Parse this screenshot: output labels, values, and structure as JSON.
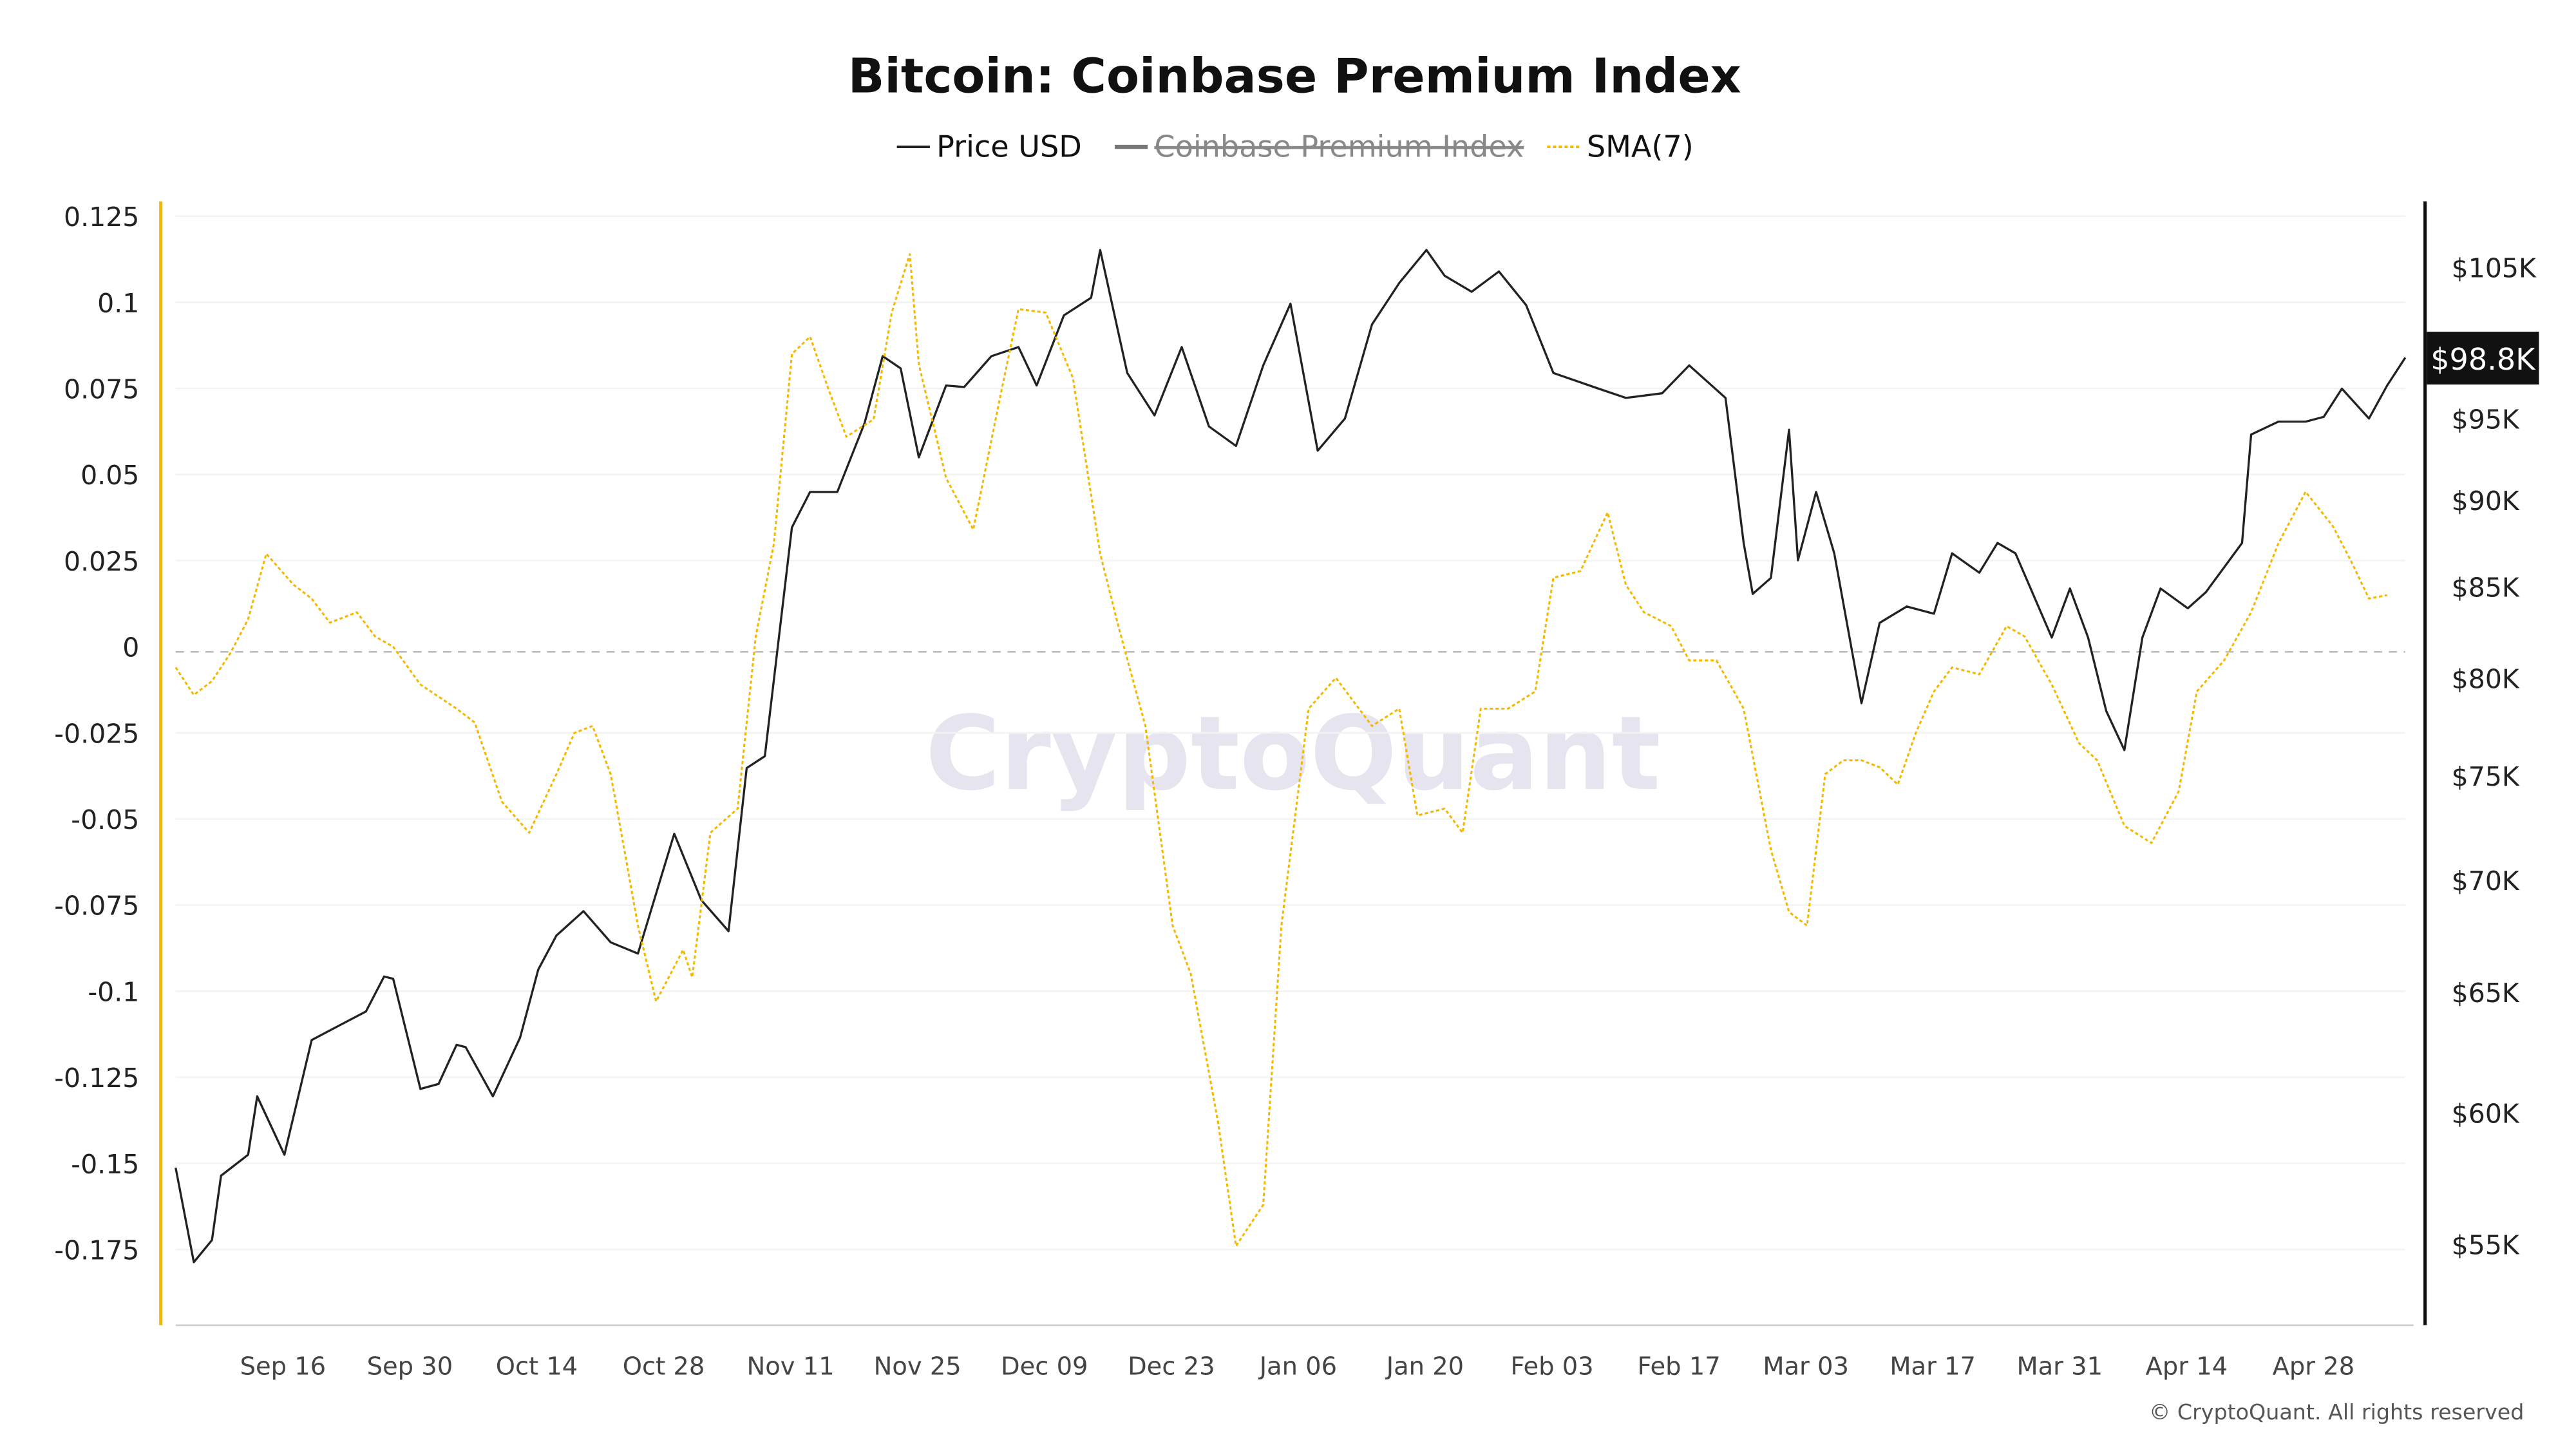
{
  "chart_data": {
    "type": "line",
    "title": "Bitcoin: Coinbase Premium Index",
    "legend": [
      {
        "name": "Price USD",
        "color": "#222222",
        "hidden": false
      },
      {
        "name": "Coinbase Premium Index",
        "color": "#777777",
        "hidden": true
      },
      {
        "name": "SMA(7)",
        "color": "#f5b800",
        "hidden": false
      }
    ],
    "legend_placement": "top",
    "x_ticks": [
      "Sep 16",
      "Sep 30",
      "Oct 14",
      "Oct 28",
      "Nov 11",
      "Nov 25",
      "Dec 09",
      "Dec 23",
      "Jan 06",
      "Jan 20",
      "Feb 03",
      "Feb 17",
      "Mar 03",
      "Mar 17",
      "Mar 31",
      "Apr 14",
      "Apr 28"
    ],
    "x_range": [
      "2024-09-04",
      "2025-05-08"
    ],
    "y_left": {
      "ticks": [
        "0.125",
        "0.1",
        "0.075",
        "0.05",
        "0.025",
        "0",
        "-0.025",
        "-0.05",
        "-0.075",
        "-0.1",
        "-0.125",
        "-0.15",
        "-0.175"
      ],
      "range": [
        -0.19,
        0.13
      ]
    },
    "y_right": {
      "ticks": [
        "$105K",
        "$95K",
        "$90K",
        "$85K",
        "$80K",
        "$75K",
        "$70K",
        "$65K",
        "$60K",
        "$55K"
      ],
      "scale": "log",
      "range": [
        52500,
        110000
      ]
    },
    "current_price_label": "$98.8K",
    "zero_line": "dashed",
    "grid": true,
    "watermark": "CryptoQuant",
    "footer": "© CryptoQuant. All rights reserved",
    "series": [
      {
        "name": "Price USD",
        "axis": "right",
        "color": "#222222",
        "points": [
          [
            "2024-09-04",
            57800
          ],
          [
            "2024-09-06",
            54300
          ],
          [
            "2024-09-08",
            55100
          ],
          [
            "2024-09-09",
            57500
          ],
          [
            "2024-09-12",
            58300
          ],
          [
            "2024-09-13",
            60600
          ],
          [
            "2024-09-16",
            58300
          ],
          [
            "2024-09-19",
            62900
          ],
          [
            "2024-09-22",
            63500
          ],
          [
            "2024-09-25",
            64100
          ],
          [
            "2024-09-27",
            65600
          ],
          [
            "2024-09-28",
            65500
          ],
          [
            "2024-10-01",
            60900
          ],
          [
            "2024-10-03",
            61100
          ],
          [
            "2024-10-05",
            62700
          ],
          [
            "2024-10-06",
            62600
          ],
          [
            "2024-10-09",
            60600
          ],
          [
            "2024-10-12",
            63000
          ],
          [
            "2024-10-14",
            65900
          ],
          [
            "2024-10-16",
            67400
          ],
          [
            "2024-10-19",
            68500
          ],
          [
            "2024-10-22",
            67100
          ],
          [
            "2024-10-25",
            66600
          ],
          [
            "2024-10-29",
            72100
          ],
          [
            "2024-11-01",
            69000
          ],
          [
            "2024-11-04",
            67600
          ],
          [
            "2024-11-06",
            75300
          ],
          [
            "2024-11-08",
            75900
          ],
          [
            "2024-11-11",
            88300
          ],
          [
            "2024-11-13",
            90400
          ],
          [
            "2024-11-16",
            90400
          ],
          [
            "2024-11-19",
            94600
          ],
          [
            "2024-11-21",
            98900
          ],
          [
            "2024-11-23",
            98100
          ],
          [
            "2024-11-25",
            92500
          ],
          [
            "2024-11-28",
            97000
          ],
          [
            "2024-11-30",
            96900
          ],
          [
            "2024-12-03",
            98900
          ],
          [
            "2024-12-06",
            99500
          ],
          [
            "2024-12-08",
            97000
          ],
          [
            "2024-12-11",
            101600
          ],
          [
            "2024-12-14",
            102800
          ],
          [
            "2024-12-15",
            106100
          ],
          [
            "2024-12-18",
            97800
          ],
          [
            "2024-12-21",
            95100
          ],
          [
            "2024-12-24",
            99500
          ],
          [
            "2024-12-27",
            94400
          ],
          [
            "2024-12-30",
            93200
          ],
          [
            "2025-01-02",
            98300
          ],
          [
            "2025-01-05",
            102400
          ],
          [
            "2025-01-08",
            92900
          ],
          [
            "2025-01-11",
            94900
          ],
          [
            "2025-01-14",
            101000
          ],
          [
            "2025-01-17",
            103800
          ],
          [
            "2025-01-20",
            106100
          ],
          [
            "2025-01-22",
            104300
          ],
          [
            "2025-01-25",
            103200
          ],
          [
            "2025-01-28",
            104600
          ],
          [
            "2025-01-31",
            102300
          ],
          [
            "2025-02-03",
            97800
          ],
          [
            "2025-02-08",
            96800
          ],
          [
            "2025-02-11",
            96200
          ],
          [
            "2025-02-15",
            96500
          ],
          [
            "2025-02-18",
            98300
          ],
          [
            "2025-02-22",
            96200
          ],
          [
            "2025-02-24",
            87400
          ],
          [
            "2025-02-25",
            84500
          ],
          [
            "2025-02-27",
            85400
          ],
          [
            "2025-03-01",
            94200
          ],
          [
            "2025-03-02",
            86400
          ],
          [
            "2025-03-04",
            90400
          ],
          [
            "2025-03-06",
            86800
          ],
          [
            "2025-03-09",
            78600
          ],
          [
            "2025-03-11",
            82900
          ],
          [
            "2025-03-14",
            83800
          ],
          [
            "2025-03-17",
            83400
          ],
          [
            "2025-03-19",
            86800
          ],
          [
            "2025-03-22",
            85700
          ],
          [
            "2025-03-24",
            87400
          ],
          [
            "2025-03-26",
            86800
          ],
          [
            "2025-03-30",
            82100
          ],
          [
            "2025-04-01",
            84800
          ],
          [
            "2025-04-03",
            82100
          ],
          [
            "2025-04-05",
            78200
          ],
          [
            "2025-04-07",
            76200
          ],
          [
            "2025-04-09",
            82100
          ],
          [
            "2025-04-11",
            84800
          ],
          [
            "2025-04-14",
            83700
          ],
          [
            "2025-04-16",
            84600
          ],
          [
            "2025-04-20",
            87400
          ],
          [
            "2025-04-21",
            93900
          ],
          [
            "2025-04-24",
            94700
          ],
          [
            "2025-04-27",
            94700
          ],
          [
            "2025-04-29",
            95000
          ],
          [
            "2025-05-01",
            96800
          ],
          [
            "2025-05-04",
            94900
          ],
          [
            "2025-05-06",
            97000
          ],
          [
            "2025-05-08",
            98800
          ]
        ]
      },
      {
        "name": "SMA(7)",
        "axis": "left",
        "color": "#f5b800",
        "points": [
          [
            "2024-09-04",
            -0.006
          ],
          [
            "2024-09-06",
            -0.014
          ],
          [
            "2024-09-08",
            -0.01
          ],
          [
            "2024-09-10",
            -0.002
          ],
          [
            "2024-09-12",
            0.008
          ],
          [
            "2024-09-14",
            0.027
          ],
          [
            "2024-09-17",
            0.018
          ],
          [
            "2024-09-19",
            0.014
          ],
          [
            "2024-09-21",
            0.007
          ],
          [
            "2024-09-24",
            0.01
          ],
          [
            "2024-09-26",
            0.003
          ],
          [
            "2024-09-28",
            0.0
          ],
          [
            "2024-10-01",
            -0.011
          ],
          [
            "2024-10-05",
            -0.018
          ],
          [
            "2024-10-07",
            -0.022
          ],
          [
            "2024-10-10",
            -0.045
          ],
          [
            "2024-10-13",
            -0.054
          ],
          [
            "2024-10-16",
            -0.037
          ],
          [
            "2024-10-18",
            -0.025
          ],
          [
            "2024-10-20",
            -0.023
          ],
          [
            "2024-10-22",
            -0.037
          ],
          [
            "2024-10-25",
            -0.081
          ],
          [
            "2024-10-27",
            -0.103
          ],
          [
            "2024-10-30",
            -0.088
          ],
          [
            "2024-10-31",
            -0.096
          ],
          [
            "2024-11-02",
            -0.054
          ],
          [
            "2024-11-05",
            -0.047
          ],
          [
            "2024-11-07",
            0.003
          ],
          [
            "2024-11-09",
            0.03
          ],
          [
            "2024-11-11",
            0.085
          ],
          [
            "2024-11-13",
            0.09
          ],
          [
            "2024-11-15",
            0.075
          ],
          [
            "2024-11-17",
            0.061
          ],
          [
            "2024-11-20",
            0.066
          ],
          [
            "2024-11-22",
            0.097
          ],
          [
            "2024-11-24",
            0.114
          ],
          [
            "2024-11-25",
            0.082
          ],
          [
            "2024-11-28",
            0.049
          ],
          [
            "2024-12-01",
            0.034
          ],
          [
            "2024-12-04",
            0.073
          ],
          [
            "2024-12-06",
            0.098
          ],
          [
            "2024-12-09",
            0.097
          ],
          [
            "2024-12-12",
            0.078
          ],
          [
            "2024-12-15",
            0.027
          ],
          [
            "2024-12-17",
            0.006
          ],
          [
            "2024-12-20",
            -0.023
          ],
          [
            "2024-12-23",
            -0.081
          ],
          [
            "2024-12-25",
            -0.095
          ],
          [
            "2024-12-28",
            -0.138
          ],
          [
            "2024-12-30",
            -0.174
          ],
          [
            "2025-01-02",
            -0.162
          ],
          [
            "2025-01-04",
            -0.081
          ],
          [
            "2025-01-07",
            -0.018
          ],
          [
            "2025-01-10",
            -0.009
          ],
          [
            "2025-01-12",
            -0.016
          ],
          [
            "2025-01-14",
            -0.023
          ],
          [
            "2025-01-17",
            -0.018
          ],
          [
            "2025-01-19",
            -0.049
          ],
          [
            "2025-01-22",
            -0.047
          ],
          [
            "2025-01-24",
            -0.054
          ],
          [
            "2025-01-26",
            -0.018
          ],
          [
            "2025-01-29",
            -0.018
          ],
          [
            "2025-02-01",
            -0.013
          ],
          [
            "2025-02-03",
            0.02
          ],
          [
            "2025-02-06",
            0.022
          ],
          [
            "2025-02-09",
            0.039
          ],
          [
            "2025-02-11",
            0.018
          ],
          [
            "2025-02-13",
            0.01
          ],
          [
            "2025-02-16",
            0.006
          ],
          [
            "2025-02-18",
            -0.004
          ],
          [
            "2025-02-21",
            -0.004
          ],
          [
            "2025-02-24",
            -0.018
          ],
          [
            "2025-02-27",
            -0.059
          ],
          [
            "2025-03-01",
            -0.077
          ],
          [
            "2025-03-03",
            -0.081
          ],
          [
            "2025-03-05",
            -0.037
          ],
          [
            "2025-03-07",
            -0.033
          ],
          [
            "2025-03-09",
            -0.033
          ],
          [
            "2025-03-11",
            -0.035
          ],
          [
            "2025-03-13",
            -0.04
          ],
          [
            "2025-03-15",
            -0.025
          ],
          [
            "2025-03-17",
            -0.013
          ],
          [
            "2025-03-19",
            -0.006
          ],
          [
            "2025-03-22",
            -0.008
          ],
          [
            "2025-03-25",
            0.006
          ],
          [
            "2025-03-27",
            0.003
          ],
          [
            "2025-03-30",
            -0.011
          ],
          [
            "2025-04-02",
            -0.028
          ],
          [
            "2025-04-04",
            -0.033
          ],
          [
            "2025-04-07",
            -0.052
          ],
          [
            "2025-04-10",
            -0.057
          ],
          [
            "2025-04-13",
            -0.042
          ],
          [
            "2025-04-15",
            -0.013
          ],
          [
            "2025-04-18",
            -0.004
          ],
          [
            "2025-04-21",
            0.01
          ],
          [
            "2025-04-24",
            0.03
          ],
          [
            "2025-04-27",
            0.045
          ],
          [
            "2025-04-30",
            0.035
          ],
          [
            "2025-05-02",
            0.025
          ],
          [
            "2025-05-04",
            0.014
          ],
          [
            "2025-05-06",
            0.015
          ]
        ]
      }
    ]
  }
}
